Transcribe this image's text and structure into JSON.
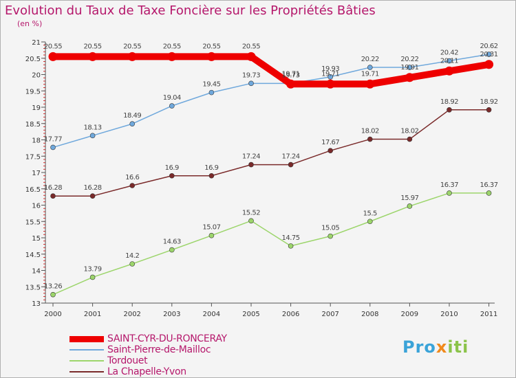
{
  "chart_data": {
    "type": "line",
    "title": "Evolution du Taux de Taxe Foncière sur les Propriétés Bâties",
    "subtitle": "(en %)",
    "x": [
      "2000",
      "2001",
      "2002",
      "2003",
      "2004",
      "2005",
      "2006",
      "2007",
      "2008",
      "2009",
      "2010",
      "2011"
    ],
    "ylim": [
      13,
      21
    ],
    "yticks": [
      "13",
      "13.5",
      "14",
      "14.5",
      "15",
      "15.5",
      "16",
      "16.5",
      "17",
      "17.5",
      "18",
      "18.5",
      "19",
      "19.5",
      "20",
      "20.5",
      "21"
    ],
    "grid": false,
    "series": [
      {
        "name": "SAINT-CYR-DU-RONCERAY",
        "color": "#ee0000",
        "values": [
          20.55,
          20.55,
          20.55,
          20.55,
          20.55,
          20.55,
          19.71,
          19.71,
          19.71,
          19.91,
          20.11,
          20.31
        ],
        "labels": [
          "20.55",
          "20.55",
          "20.55",
          "20.55",
          "20.55",
          "20.55",
          "19.71",
          "19.71",
          "19.71",
          "19.91",
          "20.11",
          "20.31"
        ]
      },
      {
        "name": "Saint-Pierre-de-Mailloc",
        "color": "#6fa8dc",
        "values": [
          17.77,
          18.13,
          18.49,
          19.04,
          19.45,
          19.73,
          19.73,
          19.93,
          20.22,
          20.22,
          20.42,
          20.62
        ],
        "labels": [
          "17.77",
          "18.13",
          "18.49",
          "19.04",
          "19.45",
          "19.73",
          "19.73",
          "19.93",
          "20.22",
          "20.22",
          "20.42",
          "20.62"
        ]
      },
      {
        "name": "Tordouet",
        "color": "#9cd56b",
        "values": [
          13.26,
          13.79,
          14.2,
          14.63,
          15.07,
          15.52,
          14.75,
          15.05,
          15.5,
          15.97,
          16.37,
          16.37
        ],
        "labels": [
          "13.26",
          "13.79",
          "14.2",
          "14.63",
          "15.07",
          "15.52",
          "14.75",
          "15.05",
          "15.5",
          "15.97",
          "16.37",
          "16.37"
        ]
      },
      {
        "name": "La Chapelle-Yvon",
        "color": "#7a2a2a",
        "values": [
          16.28,
          16.28,
          16.6,
          16.9,
          16.9,
          17.24,
          17.24,
          17.67,
          18.02,
          18.02,
          18.92,
          18.92
        ],
        "labels": [
          "16.28",
          "16.28",
          "16.6",
          "16.9",
          "16.9",
          "17.24",
          "17.24",
          "17.67",
          "18.02",
          "18.02",
          "18.92",
          "18.92"
        ]
      }
    ]
  },
  "brand": {
    "part1": "Pro",
    "part2": "x",
    "part3": "iti"
  }
}
